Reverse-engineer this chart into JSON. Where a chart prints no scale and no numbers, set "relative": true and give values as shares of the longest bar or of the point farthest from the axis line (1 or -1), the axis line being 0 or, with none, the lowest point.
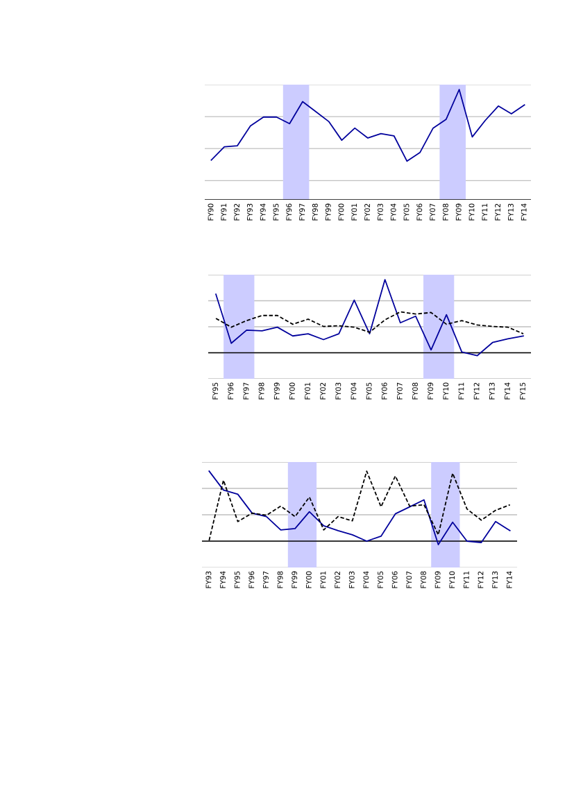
{
  "chart_data": [
    {
      "type": "line",
      "relative": true,
      "grid": "y",
      "legend": false,
      "marker": "none",
      "categories": [
        "FY90",
        "FY91",
        "FY92",
        "FY93",
        "FY94",
        "FY95",
        "FY96",
        "FY97",
        "FY98",
        "FY99",
        "FY00",
        "FY01",
        "FY02",
        "FY03",
        "FY04",
        "FY05",
        "FY06",
        "FY07",
        "FY08",
        "FY09",
        "FY10",
        "FY11",
        "FY12",
        "FY13",
        "FY14"
      ],
      "series": [
        {
          "color": "#00009c",
          "line_style": "solid",
          "values": [
            0.36,
            0.48,
            0.49,
            0.67,
            0.75,
            0.75,
            0.69,
            0.89,
            0.8,
            0.71,
            0.54,
            0.65,
            0.56,
            0.6,
            0.58,
            0.35,
            0.43,
            0.65,
            0.73,
            1,
            0.57,
            0.72,
            0.85,
            0.78,
            0.86
          ]
        }
      ],
      "bands": [
        {
          "axis": "x",
          "from": "FY96",
          "to": "FY97",
          "color": "#ccccff"
        },
        {
          "axis": "x",
          "from": "FY08",
          "to": "FY09",
          "color": "#ccccff"
        }
      ]
    },
    {
      "type": "line",
      "relative": true,
      "grid": "y",
      "legend": false,
      "marker": "none",
      "categories": [
        "FY95",
        "FY96",
        "FY97",
        "FY98",
        "FY99",
        "FY00",
        "FY01",
        "FY02",
        "FY03",
        "FY04",
        "FY05",
        "FY06",
        "FY07",
        "FY08",
        "FY09",
        "FY10",
        "FY11",
        "FY12",
        "FY13",
        "FY14",
        "FY15"
      ],
      "series": [
        {
          "color": "#00009c",
          "line_style": "solid",
          "values": [
            0.8,
            0.13,
            0.31,
            0.3,
            0.35,
            0.23,
            0.26,
            0.18,
            0.26,
            0.72,
            0.26,
            1,
            0.41,
            0.5,
            0.04,
            0.52,
            0.01,
            -0.04,
            0.14,
            0.19,
            0.23
          ]
        },
        {
          "color": "#000000",
          "line_style": "dashed",
          "values": [
            0.47,
            0.35,
            0.44,
            0.51,
            0.51,
            0.39,
            0.46,
            0.36,
            0.37,
            0.35,
            0.28,
            0.45,
            0.56,
            0.53,
            0.55,
            0.39,
            0.44,
            0.38,
            0.36,
            0.35,
            0.26
          ]
        }
      ],
      "bands": [
        {
          "axis": "x",
          "from": "FY96",
          "to": "FY97",
          "color": "#ccccff"
        },
        {
          "axis": "x",
          "from": "FY09",
          "to": "FY10",
          "color": "#ccccff"
        }
      ]
    },
    {
      "type": "line",
      "relative": true,
      "grid": "y",
      "legend": false,
      "marker": "none",
      "categories": [
        "FY93",
        "FY94",
        "FY95",
        "FY96",
        "FY97",
        "FY98",
        "FY99",
        "FY00",
        "FY01",
        "FY02",
        "FY03",
        "FY04",
        "FY05",
        "FY06",
        "FY07",
        "FY08",
        "FY09",
        "FY10",
        "FY11",
        "FY12",
        "FY13",
        "FY14"
      ],
      "series": [
        {
          "color": "#00009c",
          "line_style": "solid",
          "values": [
            1,
            0.73,
            0.67,
            0.4,
            0.35,
            0.16,
            0.18,
            0.42,
            0.22,
            0.15,
            0.09,
            0.0,
            0.07,
            0.39,
            0.49,
            0.59,
            -0.05,
            0.27,
            0.0,
            -0.02,
            0.28,
            0.15
          ]
        },
        {
          "color": "#000000",
          "line_style": "dashed",
          "values": [
            0.01,
            0.87,
            0.28,
            0.4,
            0.37,
            0.5,
            0.35,
            0.63,
            0.16,
            0.35,
            0.29,
            1,
            0.49,
            0.93,
            0.5,
            0.52,
            0.09,
            0.97,
            0.46,
            0.3,
            0.44,
            0.52
          ]
        }
      ],
      "bands": [
        {
          "axis": "x",
          "from": "FY99",
          "to": "FY00",
          "color": "#ccccff"
        },
        {
          "axis": "x",
          "from": "FY09",
          "to": "FY10",
          "color": "#ccccff"
        }
      ]
    }
  ]
}
